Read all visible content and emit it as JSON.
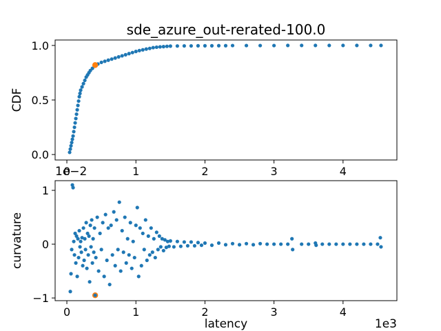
{
  "chart_data": [
    {
      "type": "scatter",
      "title": "sde_azure_out-rerated-100.0",
      "xlabel": "",
      "ylabel": "CDF",
      "xlim": [
        -0.17,
        4.78
      ],
      "ylim": [
        -0.05,
        1.05
      ],
      "x_scale_label": "",
      "xticks": [
        0,
        1,
        2,
        3,
        4
      ],
      "xtick_labels": [
        "0",
        "1",
        "2",
        "3",
        "4"
      ],
      "yticks": [
        0.0,
        0.5,
        1.0
      ],
      "ytick_labels": [
        "0.0",
        "0.5",
        "1.0"
      ],
      "series": [
        {
          "color": "#1f77b4",
          "marker": "circle",
          "points": [
            [
              0.04,
              0.02
            ],
            [
              0.05,
              0.05
            ],
            [
              0.06,
              0.08
            ],
            [
              0.07,
              0.11
            ],
            [
              0.08,
              0.14
            ],
            [
              0.09,
              0.17
            ],
            [
              0.1,
              0.21
            ],
            [
              0.11,
              0.25
            ],
            [
              0.12,
              0.29
            ],
            [
              0.13,
              0.33
            ],
            [
              0.14,
              0.37
            ],
            [
              0.15,
              0.41
            ],
            [
              0.16,
              0.45
            ],
            [
              0.17,
              0.49
            ],
            [
              0.18,
              0.53
            ],
            [
              0.19,
              0.56
            ],
            [
              0.2,
              0.59
            ],
            [
              0.22,
              0.62
            ],
            [
              0.24,
              0.65
            ],
            [
              0.26,
              0.68
            ],
            [
              0.28,
              0.71
            ],
            [
              0.3,
              0.73
            ],
            [
              0.32,
              0.75
            ],
            [
              0.34,
              0.77
            ],
            [
              0.37,
              0.79
            ],
            [
              0.4,
              0.81
            ],
            [
              0.45,
              0.83
            ],
            [
              0.5,
              0.845
            ],
            [
              0.55,
              0.855
            ],
            [
              0.6,
              0.865
            ],
            [
              0.65,
              0.875
            ],
            [
              0.7,
              0.885
            ],
            [
              0.75,
              0.895
            ],
            [
              0.8,
              0.905
            ],
            [
              0.85,
              0.915
            ],
            [
              0.9,
              0.925
            ],
            [
              0.95,
              0.935
            ],
            [
              1.0,
              0.945
            ],
            [
              1.05,
              0.953
            ],
            [
              1.1,
              0.96
            ],
            [
              1.15,
              0.967
            ],
            [
              1.2,
              0.973
            ],
            [
              1.25,
              0.98
            ],
            [
              1.3,
              0.984
            ],
            [
              1.35,
              0.987
            ],
            [
              1.4,
              0.989
            ],
            [
              1.45,
              0.992
            ],
            [
              1.5,
              0.994
            ],
            [
              1.6,
              0.995
            ],
            [
              1.7,
              0.996
            ],
            [
              1.8,
              0.996
            ],
            [
              1.9,
              0.997
            ],
            [
              2.0,
              0.997
            ],
            [
              2.1,
              0.997
            ],
            [
              2.2,
              0.998
            ],
            [
              2.3,
              0.998
            ],
            [
              2.4,
              0.999
            ],
            [
              2.6,
              0.999
            ],
            [
              2.8,
              0.999
            ],
            [
              3.0,
              0.999
            ],
            [
              3.2,
              1.0
            ],
            [
              3.4,
              1.0
            ],
            [
              3.6,
              1.0
            ],
            [
              3.8,
              1.0
            ],
            [
              4.0,
              1.0
            ],
            [
              4.2,
              1.0
            ],
            [
              4.4,
              1.0
            ],
            [
              4.55,
              1.0
            ]
          ]
        },
        {
          "color": "#ff7f0e",
          "marker": "circle",
          "points": [
            [
              0.41,
              0.82
            ]
          ]
        }
      ]
    },
    {
      "type": "scatter",
      "title": "",
      "xlabel": "latency",
      "ylabel": "curvature",
      "xlim": [
        -0.17,
        4.78
      ],
      "ylim": [
        -1.05,
        1.18
      ],
      "x_scale_label": "1e3",
      "y_scale_label": "1e−2",
      "xticks": [
        0,
        1,
        2,
        3,
        4
      ],
      "xtick_labels": [
        "0",
        "1",
        "2",
        "3",
        "4"
      ],
      "yticks": [
        -1,
        0,
        1
      ],
      "ytick_labels": [
        "−1",
        "0",
        "1"
      ],
      "series": [
        {
          "color": "#1f77b4",
          "marker": "circle",
          "points": [
            [
              0.05,
              -0.88
            ],
            [
              0.06,
              -0.55
            ],
            [
              0.07,
              -0.1
            ],
            [
              0.08,
              1.1
            ],
            [
              0.09,
              1.05
            ],
            [
              0.1,
              0.05
            ],
            [
              0.11,
              -0.2
            ],
            [
              0.12,
              0.2
            ],
            [
              0.13,
              -0.35
            ],
            [
              0.14,
              0.15
            ],
            [
              0.15,
              -0.6
            ],
            [
              0.16,
              0.1
            ],
            [
              0.17,
              -0.25
            ],
            [
              0.18,
              0.25
            ],
            [
              0.19,
              -0.05
            ],
            [
              0.2,
              0.05
            ],
            [
              0.21,
              -0.15
            ],
            [
              0.22,
              0.12
            ],
            [
              0.23,
              -0.4
            ],
            [
              0.24,
              0.3
            ],
            [
              0.25,
              -0.3
            ],
            [
              0.26,
              0.1
            ],
            [
              0.27,
              -0.1
            ],
            [
              0.28,
              0.4
            ],
            [
              0.29,
              -0.45
            ],
            [
              0.3,
              0.2
            ],
            [
              0.31,
              -0.2
            ],
            [
              0.32,
              0.15
            ],
            [
              0.33,
              -0.7
            ],
            [
              0.34,
              0.35
            ],
            [
              0.35,
              -0.05
            ],
            [
              0.36,
              0.45
            ],
            [
              0.37,
              -0.35
            ],
            [
              0.38,
              0.1
            ],
            [
              0.39,
              -0.15
            ],
            [
              0.4,
              0.3
            ],
            [
              0.42,
              -0.25
            ],
            [
              0.44,
              0.5
            ],
            [
              0.46,
              -0.5
            ],
            [
              0.48,
              0.2
            ],
            [
              0.5,
              -0.1
            ],
            [
              0.52,
              0.4
            ],
            [
              0.54,
              -0.6
            ],
            [
              0.56,
              0.55
            ],
            [
              0.58,
              -0.3
            ],
            [
              0.6,
              0.3
            ],
            [
              0.62,
              -0.75
            ],
            [
              0.64,
              0.35
            ],
            [
              0.66,
              -0.2
            ],
            [
              0.68,
              0.6
            ],
            [
              0.7,
              -0.4
            ],
            [
              0.72,
              0.45
            ],
            [
              0.74,
              -0.1
            ],
            [
              0.76,
              0.78
            ],
            [
              0.78,
              -0.5
            ],
            [
              0.8,
              0.25
            ],
            [
              0.82,
              -0.15
            ],
            [
              0.84,
              0.5
            ],
            [
              0.86,
              -0.35
            ],
            [
              0.88,
              0.1
            ],
            [
              0.9,
              -0.2
            ],
            [
              0.92,
              0.4
            ],
            [
              0.94,
              -0.45
            ],
            [
              0.96,
              0.05
            ],
            [
              0.98,
              -0.25
            ],
            [
              1.0,
              0.35
            ],
            [
              1.02,
              0.68
            ],
            [
              1.04,
              -0.6
            ],
            [
              1.06,
              0.3
            ],
            [
              1.08,
              -0.4
            ],
            [
              1.1,
              0.2
            ],
            [
              1.12,
              -0.1
            ],
            [
              1.14,
              0.45
            ],
            [
              1.16,
              -0.3
            ],
            [
              1.18,
              0.15
            ],
            [
              1.2,
              -0.2
            ],
            [
              1.22,
              0.3
            ],
            [
              1.24,
              -0.15
            ],
            [
              1.26,
              0.1
            ],
            [
              1.28,
              -0.25
            ],
            [
              1.3,
              0.22
            ],
            [
              1.32,
              -0.1
            ],
            [
              1.34,
              0.15
            ],
            [
              1.36,
              -0.05
            ],
            [
              1.38,
              0.1
            ],
            [
              1.4,
              -0.12
            ],
            [
              1.42,
              0.08
            ],
            [
              1.44,
              -0.06
            ],
            [
              1.46,
              0.05
            ],
            [
              1.48,
              -0.04
            ],
            [
              1.5,
              0.06
            ],
            [
              1.55,
              -0.05
            ],
            [
              1.6,
              0.05
            ],
            [
              1.65,
              -0.04
            ],
            [
              1.7,
              0.04
            ],
            [
              1.75,
              -0.03
            ],
            [
              1.8,
              0.04
            ],
            [
              1.85,
              -0.03
            ],
            [
              1.9,
              0.03
            ],
            [
              1.95,
              -0.02
            ],
            [
              2.0,
              0.02
            ],
            [
              2.1,
              -0.02
            ],
            [
              2.2,
              0.02
            ],
            [
              2.3,
              -0.01
            ],
            [
              2.4,
              0.01
            ],
            [
              2.5,
              -0.01
            ],
            [
              2.6,
              0.01
            ],
            [
              2.7,
              -0.01
            ],
            [
              2.8,
              0.01
            ],
            [
              2.9,
              0.0
            ],
            [
              3.0,
              0.0
            ],
            [
              3.1,
              0.0
            ],
            [
              3.2,
              0.0
            ],
            [
              3.26,
              0.1
            ],
            [
              3.27,
              -0.1
            ],
            [
              3.4,
              0.0
            ],
            [
              3.5,
              0.0
            ],
            [
              3.6,
              0.02
            ],
            [
              3.61,
              -0.02
            ],
            [
              3.7,
              0.0
            ],
            [
              3.8,
              0.0
            ],
            [
              3.9,
              0.0
            ],
            [
              4.0,
              0.0
            ],
            [
              4.1,
              0.0
            ],
            [
              4.2,
              0.0
            ],
            [
              4.3,
              0.0
            ],
            [
              4.4,
              0.0
            ],
            [
              4.5,
              0.0
            ],
            [
              4.54,
              0.12
            ],
            [
              4.55,
              -0.05
            ]
          ]
        },
        {
          "color": "#ff7f0e",
          "marker": "ring",
          "points": [
            [
              0.41,
              -0.95
            ]
          ]
        }
      ]
    }
  ]
}
